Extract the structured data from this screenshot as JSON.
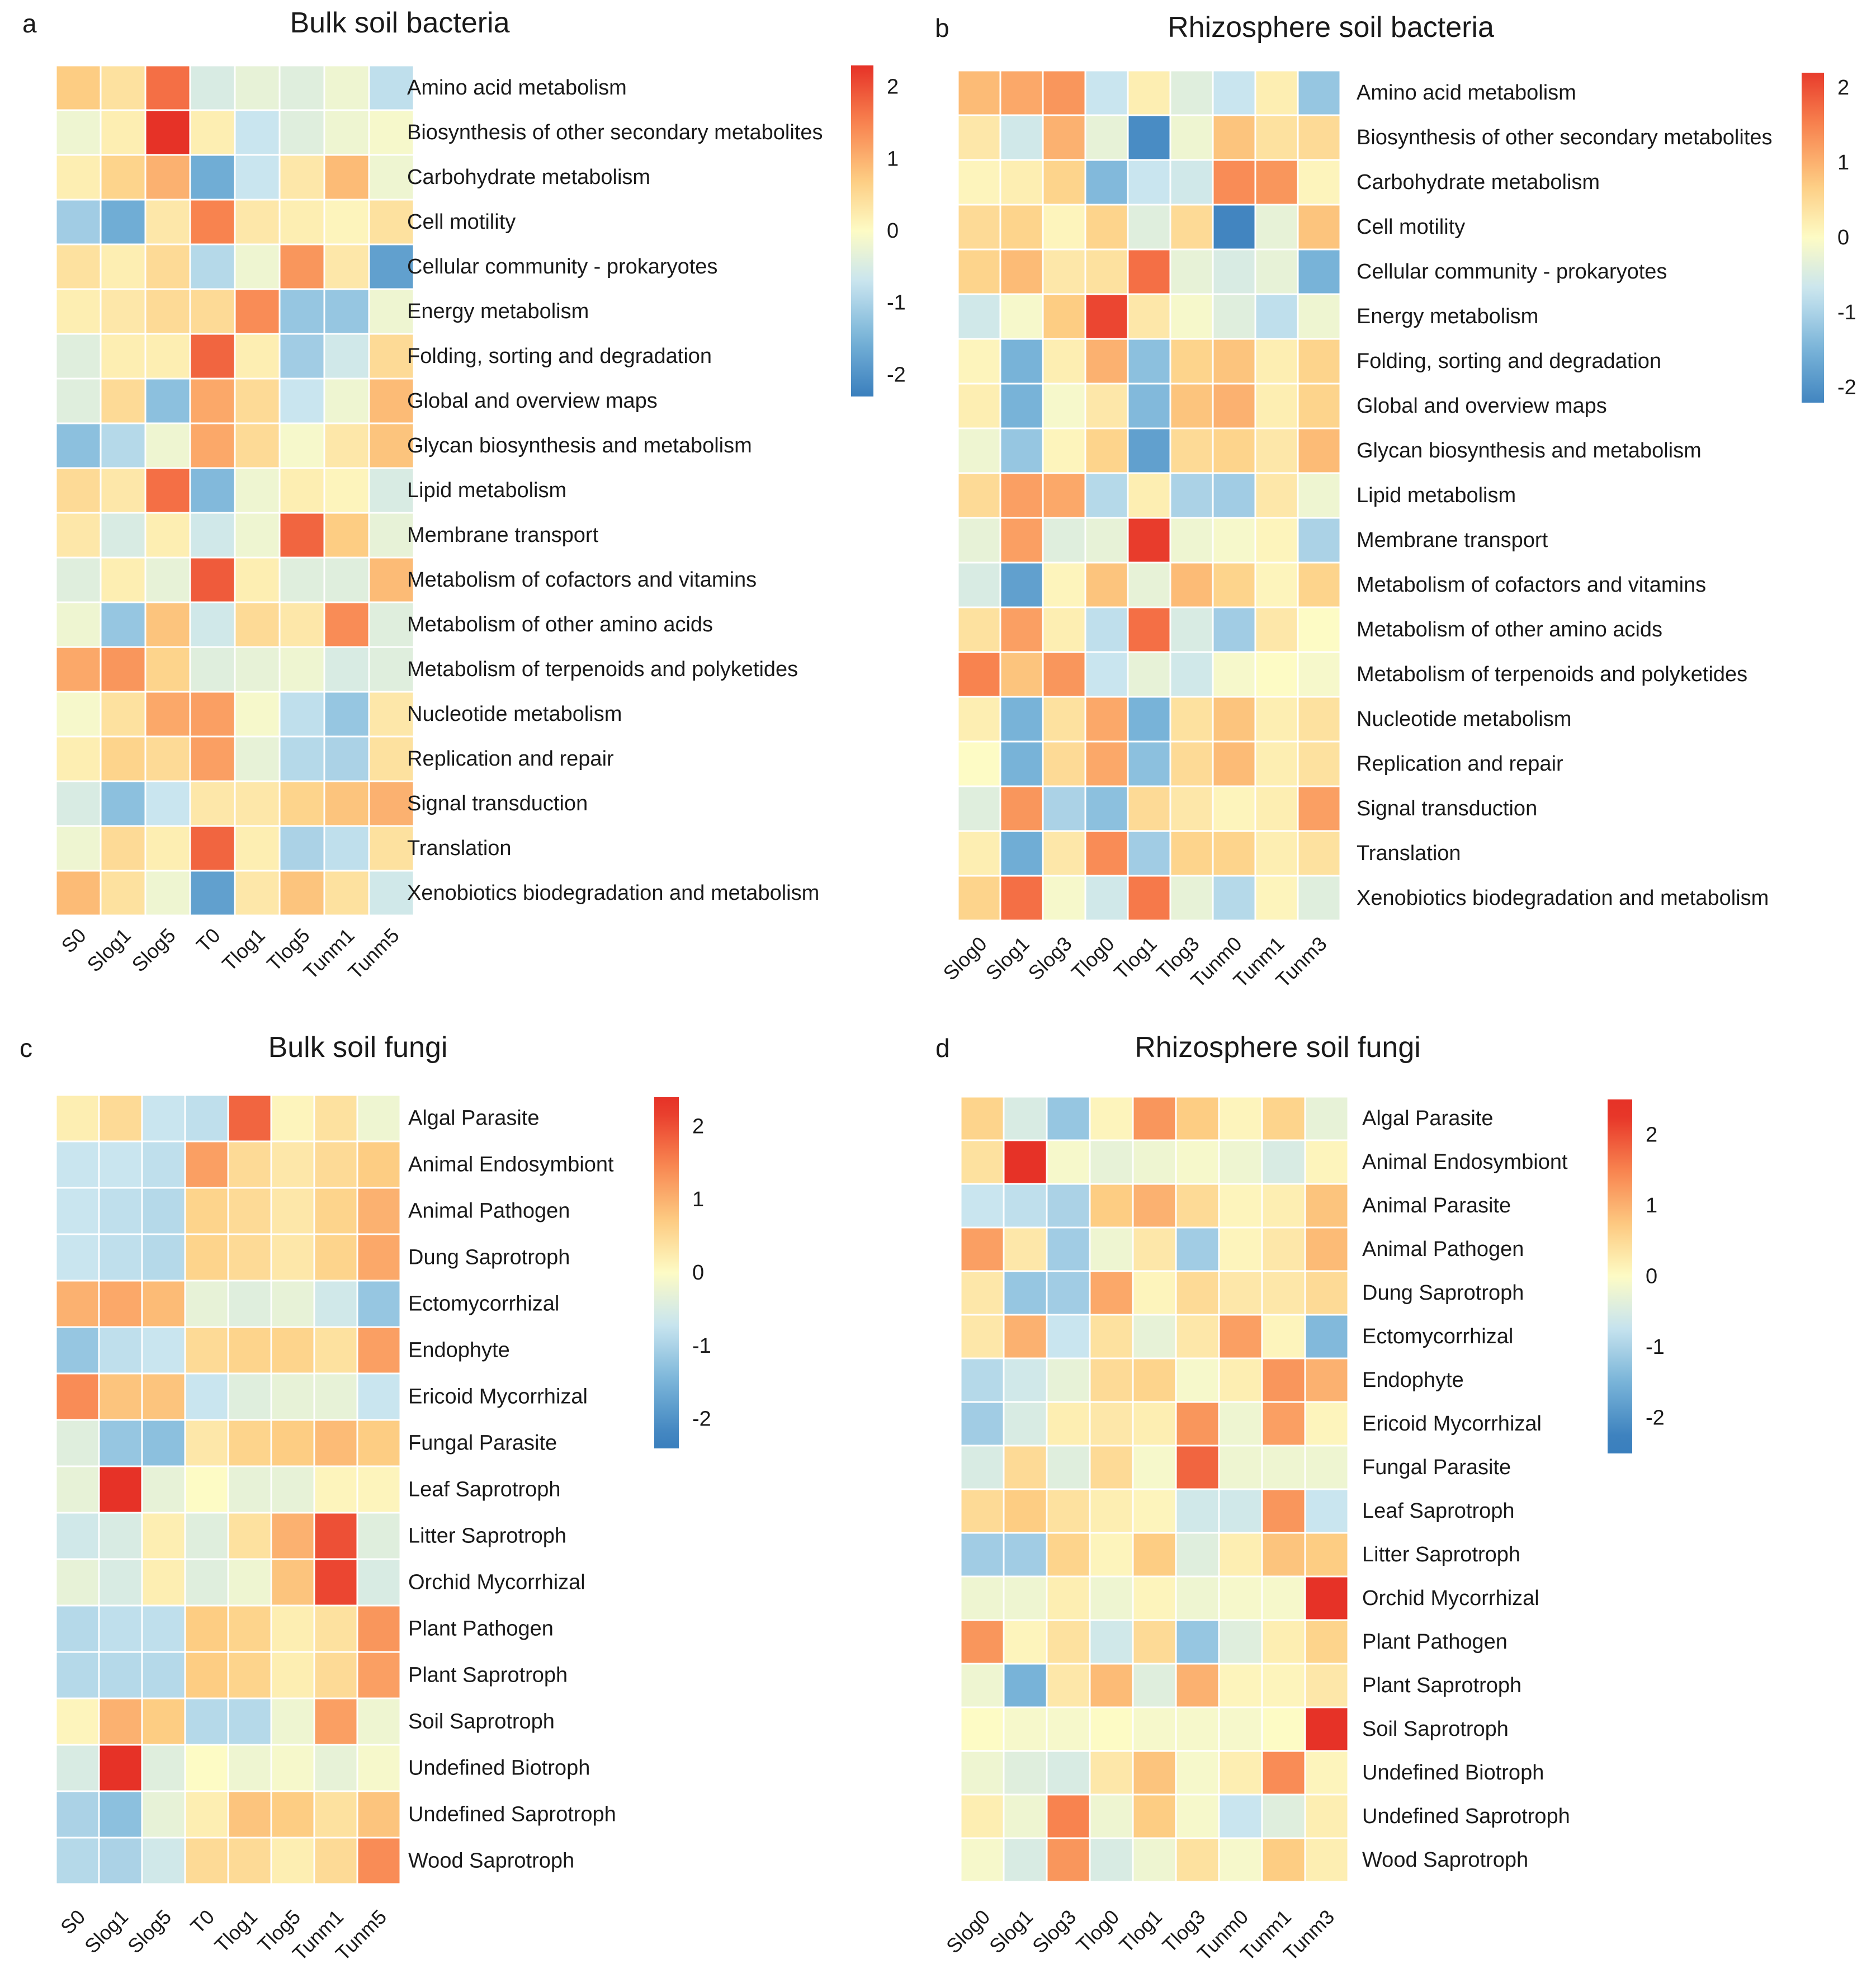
{
  "palette": {
    "colors": [
      "#3a7fbd",
      "#78b3d8",
      "#c9e5ef",
      "#fdfbc5",
      "#fdcd83",
      "#f8834f",
      "#e63227"
    ],
    "stops": [
      -2.3,
      -1.5,
      -0.7,
      0,
      0.7,
      1.5,
      2.3
    ]
  },
  "chart_data": [
    {
      "type": "heatmap",
      "panel": "a",
      "title": "Bulk soil bacteria",
      "columns": [
        "S0",
        "Slog1",
        "Slog5",
        "T0",
        "Tlog1",
        "Tlog5",
        "Tunm1",
        "Tunm5"
      ],
      "rows": [
        "Amino acid metabolism",
        "Biosynthesis of other secondary metabolites",
        "Carbohydrate metabolism",
        "Cell motility",
        "Cellular community - prokaryotes",
        "Energy metabolism",
        "Folding, sorting and degradation",
        "Global and overview maps",
        "Glycan biosynthesis and metabolism",
        "Lipid metabolism",
        "Membrane transport",
        "Metabolism of cofactors and vitamins",
        "Metabolism of other amino acids",
        "Metabolism of terpenoids and polyketides",
        "Nucleotide metabolism",
        "Replication and repair",
        "Signal transduction",
        "Translation",
        "Xenobiotics biodegradation and metabolism"
      ],
      "values": [
        [
          0.7,
          0.4,
          1.7,
          -0.5,
          -0.3,
          -0.4,
          -0.2,
          -0.8
        ],
        [
          -0.2,
          0.2,
          2.3,
          0.2,
          -0.7,
          -0.4,
          -0.2,
          -0.1
        ],
        [
          0.2,
          0.6,
          1.0,
          -1.6,
          -0.7,
          0.3,
          0.9,
          -0.2
        ],
        [
          -1.1,
          -1.6,
          0.3,
          1.5,
          0.3,
          0.2,
          0.1,
          0.4
        ],
        [
          0.4,
          0.2,
          0.5,
          -0.9,
          -0.2,
          1.3,
          0.3,
          -1.8
        ],
        [
          0.2,
          0.3,
          0.5,
          0.5,
          1.4,
          -1.2,
          -1.2,
          -0.2
        ],
        [
          -0.4,
          0.2,
          0.2,
          1.8,
          0.2,
          -1.1,
          -0.6,
          0.5
        ],
        [
          -0.4,
          0.5,
          -1.3,
          1.1,
          0.5,
          -0.7,
          -0.2,
          0.9
        ],
        [
          -1.3,
          -0.9,
          -0.2,
          1.1,
          0.5,
          -0.1,
          0.3,
          0.8
        ],
        [
          0.5,
          0.3,
          1.7,
          -1.4,
          -0.2,
          0.2,
          0.1,
          -0.5
        ],
        [
          0.3,
          -0.5,
          0.2,
          -0.6,
          -0.2,
          1.8,
          0.7,
          -0.3
        ],
        [
          -0.4,
          0.2,
          -0.3,
          1.9,
          0.2,
          -0.4,
          -0.4,
          0.9
        ],
        [
          -0.2,
          -1.2,
          0.8,
          -0.6,
          0.5,
          0.3,
          1.4,
          -0.4
        ],
        [
          1.1,
          1.3,
          0.6,
          -0.4,
          -0.3,
          -0.2,
          -0.5,
          -0.4
        ],
        [
          -0.1,
          0.4,
          1.1,
          1.2,
          -0.1,
          -0.8,
          -1.2,
          0.3
        ],
        [
          0.2,
          0.6,
          0.5,
          1.2,
          -0.3,
          -0.9,
          -1.0,
          0.4
        ],
        [
          -0.5,
          -1.3,
          -0.7,
          0.3,
          0.3,
          0.6,
          0.8,
          1.0
        ],
        [
          -0.2,
          0.5,
          0.2,
          1.8,
          0.2,
          -1.0,
          -0.8,
          0.4
        ],
        [
          0.9,
          0.4,
          -0.2,
          -1.8,
          0.3,
          0.8,
          0.4,
          -0.6
        ]
      ],
      "legend": {
        "ticks": [
          2,
          1,
          0,
          -1,
          -2
        ],
        "labels": [
          "2",
          "1",
          "0",
          "-1",
          "-2"
        ],
        "range": [
          -2.3,
          2.3
        ]
      }
    },
    {
      "type": "heatmap",
      "panel": "b",
      "title": "Rhizosphere soil bacteria",
      "columns": [
        "Slog0",
        "Slog1",
        "Slog3",
        "Tlog0",
        "Tlog1",
        "Tlog3",
        "Tunm0",
        "Tunm1",
        "Tunm3"
      ],
      "rows": [
        "Amino acid metabolism",
        "Biosynthesis of other secondary metabolites",
        "Carbohydrate metabolism",
        "Cell motility",
        "Cellular community - prokaryotes",
        "Energy metabolism",
        "Folding, sorting and degradation",
        "Global and overview maps",
        "Glycan biosynthesis and metabolism",
        "Lipid metabolism",
        "Membrane transport",
        "Metabolism of cofactors and vitamins",
        "Metabolism of other amino acids",
        "Metabolism of terpenoids and polyketides",
        "Nucleotide metabolism",
        "Replication and repair",
        "Signal transduction",
        "Translation",
        "Xenobiotics biodegradation and metabolism"
      ],
      "values": [
        [
          0.9,
          1.1,
          1.3,
          -0.7,
          0.2,
          -0.4,
          -0.7,
          0.2,
          -1.2
        ],
        [
          0.3,
          -0.6,
          1.0,
          -0.3,
          -2.1,
          -0.2,
          0.8,
          0.4,
          0.5
        ],
        [
          0.1,
          0.2,
          0.6,
          -1.4,
          -0.7,
          -0.6,
          1.4,
          1.3,
          0.1
        ],
        [
          0.5,
          0.6,
          0.1,
          0.6,
          -0.4,
          0.5,
          -2.2,
          -0.3,
          0.8
        ],
        [
          0.6,
          0.9,
          0.3,
          0.4,
          1.7,
          -0.3,
          -0.5,
          -0.3,
          -1.5
        ],
        [
          -0.6,
          -0.1,
          0.7,
          2.1,
          0.3,
          -0.1,
          -0.4,
          -0.8,
          -0.2
        ],
        [
          0.1,
          -1.5,
          0.2,
          1.0,
          -1.3,
          0.6,
          0.8,
          0.2,
          0.6
        ],
        [
          0.2,
          -1.5,
          -0.1,
          0.3,
          -1.4,
          0.8,
          1.0,
          0.2,
          0.6
        ],
        [
          -0.2,
          -1.2,
          0.1,
          0.6,
          -1.8,
          0.5,
          0.6,
          0.3,
          0.9
        ],
        [
          0.5,
          1.2,
          1.1,
          -0.9,
          0.2,
          -1.0,
          -1.1,
          0.3,
          -0.2
        ],
        [
          -0.3,
          1.2,
          -0.4,
          -0.3,
          2.2,
          -0.2,
          -0.1,
          0.1,
          -1.0
        ],
        [
          -0.5,
          -1.8,
          0.1,
          0.8,
          -0.3,
          0.9,
          0.6,
          0.1,
          0.6
        ],
        [
          0.4,
          1.2,
          0.2,
          -0.8,
          1.7,
          -0.5,
          -1.1,
          0.3,
          0.0
        ],
        [
          1.5,
          0.8,
          1.3,
          -0.7,
          -0.3,
          -0.6,
          -0.1,
          0.0,
          -0.1
        ],
        [
          0.2,
          -1.5,
          0.4,
          1.1,
          -1.5,
          0.4,
          0.8,
          0.2,
          0.4
        ],
        [
          0.0,
          -1.5,
          0.5,
          1.1,
          -1.3,
          0.5,
          0.9,
          0.2,
          0.4
        ],
        [
          -0.4,
          1.3,
          -1.0,
          -1.3,
          0.5,
          0.3,
          0.1,
          0.2,
          1.2
        ],
        [
          0.2,
          -1.6,
          0.3,
          1.4,
          -1.1,
          0.6,
          0.6,
          0.2,
          0.4
        ],
        [
          0.6,
          1.7,
          -0.1,
          -0.6,
          1.6,
          -0.3,
          -0.9,
          0.1,
          -0.4
        ]
      ],
      "legend": {
        "ticks": [
          2,
          1,
          0,
          -1,
          -2
        ],
        "labels": [
          "2",
          "1",
          "0",
          "-1",
          "-2"
        ],
        "range": [
          -2.2,
          2.2
        ]
      }
    },
    {
      "type": "heatmap",
      "panel": "c",
      "title": "Bulk soil fungi",
      "columns": [
        "S0",
        "Slog1",
        "Slog5",
        "T0",
        "Tlog1",
        "Tlog5",
        "Tunm1",
        "Tunm5"
      ],
      "rows": [
        "Algal Parasite",
        "Animal Endosymbiont",
        "Animal Pathogen",
        "Dung Saprotroph",
        "Ectomycorrhizal",
        "Endophyte",
        "Ericoid Mycorrhizal",
        "Fungal Parasite",
        "Leaf Saprotroph",
        "Litter Saprotroph",
        "Orchid Mycorrhizal",
        "Plant Pathogen",
        "Plant Saprotroph",
        "Soil Saprotroph",
        "Undefined Biotroph",
        "Undefined Saprotroph",
        "Wood Saprotroph"
      ],
      "values": [
        [
          0.2,
          0.5,
          -0.7,
          -0.8,
          1.8,
          0.1,
          0.4,
          -0.2
        ],
        [
          -0.7,
          -0.7,
          -0.8,
          1.2,
          0.5,
          0.3,
          0.5,
          0.7
        ],
        [
          -0.7,
          -0.8,
          -0.9,
          0.6,
          0.5,
          0.3,
          0.6,
          1.0
        ],
        [
          -0.7,
          -0.8,
          -0.9,
          0.6,
          0.5,
          0.3,
          0.6,
          1.1
        ],
        [
          1.0,
          1.1,
          0.9,
          -0.3,
          -0.4,
          -0.3,
          -0.6,
          -1.2
        ],
        [
          -1.2,
          -0.8,
          -0.7,
          0.5,
          0.6,
          0.6,
          0.4,
          1.2
        ],
        [
          1.4,
          0.8,
          0.8,
          -0.7,
          -0.4,
          -0.3,
          -0.3,
          -0.7
        ],
        [
          -0.4,
          -1.2,
          -1.3,
          0.3,
          0.6,
          0.7,
          0.9,
          0.7
        ],
        [
          -0.3,
          2.3,
          -0.3,
          0.0,
          -0.3,
          -0.3,
          0.1,
          0.1
        ],
        [
          -0.6,
          -0.5,
          0.2,
          -0.4,
          0.4,
          1.0,
          2.0,
          -0.4
        ],
        [
          -0.3,
          -0.5,
          0.2,
          -0.4,
          -0.2,
          0.8,
          2.1,
          -0.5
        ],
        [
          -0.9,
          -0.8,
          -0.8,
          0.7,
          0.6,
          0.2,
          0.4,
          1.3
        ],
        [
          -0.9,
          -0.9,
          -0.9,
          0.7,
          0.6,
          0.2,
          0.5,
          1.2
        ],
        [
          0.1,
          1.0,
          0.7,
          -0.9,
          -0.9,
          -0.2,
          1.2,
          -0.2
        ],
        [
          -0.5,
          2.3,
          -0.4,
          0.0,
          -0.2,
          -0.1,
          -0.3,
          -0.1
        ],
        [
          -1.0,
          -1.3,
          -0.3,
          0.2,
          0.8,
          0.7,
          0.4,
          0.8
        ],
        [
          -0.9,
          -1.0,
          -0.6,
          0.5,
          0.5,
          0.2,
          0.5,
          1.4
        ]
      ],
      "legend": {
        "ticks": [
          2,
          1,
          0,
          -1,
          -2
        ],
        "labels": [
          "2",
          "1",
          "0",
          "-1",
          "-2"
        ],
        "range": [
          -2.4,
          2.4
        ]
      }
    },
    {
      "type": "heatmap",
      "panel": "d",
      "title": "Rhizosphere soil fungi",
      "columns": [
        "Slog0",
        "Slog1",
        "Slog3",
        "Tlog0",
        "Tlog1",
        "Tlog3",
        "Tunm0",
        "Tunm1",
        "Tunm3"
      ],
      "rows": [
        "Algal Parasite",
        "Animal Endosymbiont",
        "Animal Parasite",
        "Animal Pathogen",
        "Dung Saprotroph",
        "Ectomycorrhizal",
        "Endophyte",
        "Ericoid Mycorrhizal",
        "Fungal Parasite",
        "Leaf Saprotroph",
        "Litter Saprotroph",
        "Orchid Mycorrhizal",
        "Plant Pathogen",
        "Plant Saprotroph",
        "Soil Saprotroph",
        "Undefined Biotroph",
        "Undefined Saprotroph",
        "Wood Saprotroph"
      ],
      "values": [
        [
          0.6,
          -0.5,
          -1.2,
          0.1,
          1.3,
          0.7,
          0.1,
          0.6,
          -0.3
        ],
        [
          0.4,
          2.4,
          -0.1,
          -0.3,
          -0.2,
          -0.1,
          -0.2,
          -0.5,
          0.1
        ],
        [
          -0.7,
          -0.8,
          -1.0,
          0.7,
          1.0,
          0.5,
          0.1,
          0.2,
          0.8
        ],
        [
          1.2,
          0.3,
          -1.1,
          -0.2,
          0.3,
          -1.1,
          0.1,
          0.3,
          0.9
        ],
        [
          0.3,
          -1.2,
          -1.1,
          1.1,
          0.1,
          0.5,
          0.3,
          0.3,
          0.5
        ],
        [
          0.3,
          1.0,
          -0.7,
          0.4,
          -0.3,
          0.3,
          1.2,
          0.1,
          -1.4
        ],
        [
          -0.9,
          -0.6,
          -0.3,
          0.5,
          0.6,
          -0.1,
          0.2,
          1.3,
          1.0
        ],
        [
          -1.1,
          -0.5,
          0.2,
          0.3,
          0.2,
          1.3,
          -0.2,
          1.2,
          0.1
        ],
        [
          -0.5,
          0.5,
          -0.4,
          0.5,
          -0.1,
          1.8,
          -0.2,
          -0.2,
          -0.2
        ],
        [
          0.5,
          0.7,
          0.4,
          0.2,
          0.1,
          -0.6,
          -0.6,
          1.3,
          -0.7
        ],
        [
          -1.1,
          -1.1,
          0.6,
          0.1,
          0.7,
          -0.4,
          0.2,
          0.8,
          0.7
        ],
        [
          -0.2,
          -0.2,
          0.2,
          -0.2,
          0.1,
          -0.2,
          -0.1,
          -0.1,
          2.3
        ],
        [
          1.3,
          0.1,
          0.4,
          -0.6,
          0.5,
          -1.2,
          -0.4,
          0.2,
          0.6
        ],
        [
          -0.2,
          -1.5,
          0.3,
          0.9,
          -0.4,
          1.0,
          0.1,
          0.1,
          0.3
        ],
        [
          0.0,
          -0.1,
          -0.1,
          0.0,
          -0.1,
          -0.1,
          -0.1,
          0.0,
          2.4
        ],
        [
          -0.2,
          -0.4,
          -0.5,
          0.3,
          0.8,
          -0.1,
          0.2,
          1.4,
          0.1
        ],
        [
          0.2,
          -0.2,
          1.5,
          -0.2,
          0.7,
          -0.1,
          -0.7,
          -0.4,
          0.2
        ],
        [
          -0.1,
          -0.5,
          1.3,
          -0.5,
          -0.2,
          0.4,
          -0.1,
          0.7,
          0.2
        ]
      ],
      "legend": {
        "ticks": [
          2,
          1,
          0,
          -1,
          -2
        ],
        "labels": [
          "2",
          "1",
          "0",
          "-1",
          "-2"
        ],
        "range": [
          -2.5,
          2.5
        ]
      }
    }
  ]
}
